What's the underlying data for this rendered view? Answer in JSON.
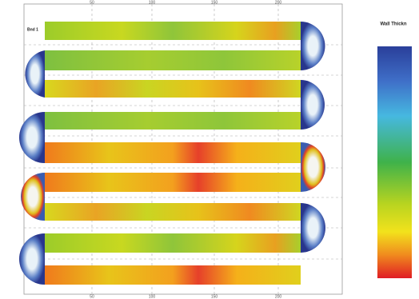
{
  "legend": {
    "title": "Wall Thickn"
  },
  "axis": {
    "top_ticks": [
      "50",
      "100",
      "150",
      "200"
    ],
    "bottom_ticks": [
      "50",
      "100",
      "150",
      "200"
    ]
  },
  "labels": {
    "first_tube": "Bnd 1"
  }
}
